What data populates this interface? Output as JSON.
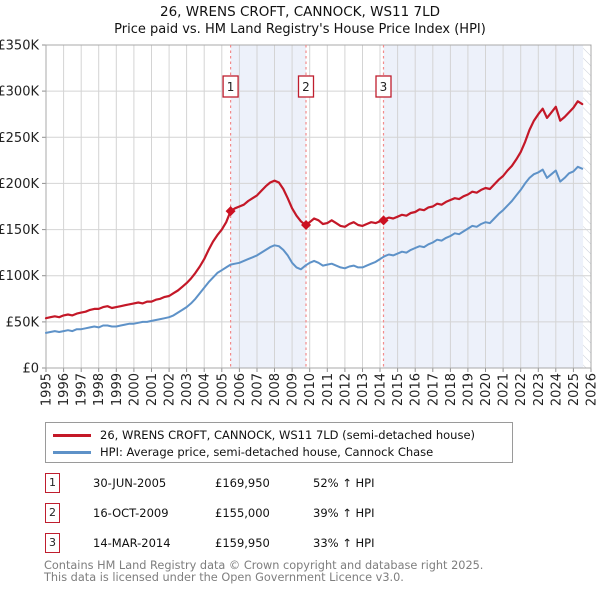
{
  "title": "26, WRENS CROFT, CANNOCK, WS11 7LD",
  "subtitle": "Price paid vs. HM Land Registry's House Price Index (HPI)",
  "chart_data": {
    "type": "line",
    "xlim": [
      1995,
      2026
    ],
    "ylim": [
      0,
      350000
    ],
    "x_start": 1995.0,
    "x_step": 0.25,
    "x_ticks": [
      1995,
      1996,
      1997,
      1998,
      1999,
      2000,
      2001,
      2002,
      2003,
      2004,
      2005,
      2006,
      2007,
      2008,
      2009,
      2010,
      2011,
      2012,
      2013,
      2014,
      2015,
      2016,
      2017,
      2018,
      2019,
      2020,
      2021,
      2022,
      2023,
      2024,
      2025,
      2026
    ],
    "y_ticks": [
      0,
      50,
      100,
      150,
      200,
      250,
      300,
      350
    ],
    "y_tick_labels": [
      "£0",
      "£50K",
      "£100K",
      "£150K",
      "£200K",
      "£250K",
      "£300K",
      "£350K"
    ],
    "grid": true,
    "legend_position": "bottom",
    "series": [
      {
        "name": "26, WRENS CROFT, CANNOCK, WS11 7LD (semi-detached house)",
        "color": "#c41828",
        "width": 2.2,
        "values_k": [
          54,
          55,
          56,
          55,
          57,
          58,
          57,
          59,
          60,
          61,
          63,
          64,
          64,
          66,
          67,
          65,
          66,
          67,
          68,
          69,
          70,
          71,
          70,
          72,
          72,
          74,
          75,
          77,
          78,
          81,
          84,
          88,
          92,
          97,
          103,
          110,
          118,
          128,
          137,
          144,
          150,
          158,
          170,
          173,
          175,
          177,
          181,
          184,
          187,
          192,
          197,
          201,
          203,
          201,
          194,
          184,
          173,
          165,
          159,
          155,
          158,
          162,
          160,
          156,
          157,
          160,
          157,
          154,
          153,
          156,
          158,
          155,
          154,
          156,
          158,
          157,
          159,
          161,
          163,
          162,
          164,
          166,
          165,
          168,
          169,
          172,
          171,
          174,
          175,
          178,
          177,
          180,
          182,
          184,
          183,
          186,
          188,
          191,
          190,
          193,
          195,
          194,
          199,
          204,
          208,
          214,
          219,
          226,
          234,
          245,
          258,
          268,
          275,
          281,
          271,
          277,
          283,
          268,
          272,
          277,
          282,
          289,
          286
        ]
      },
      {
        "name": "HPI: Average price, semi-detached house, Cannock Chase",
        "color": "#5e92c8",
        "width": 2.0,
        "values_k": [
          38,
          39,
          40,
          39,
          40,
          41,
          40,
          42,
          42,
          43,
          44,
          45,
          44,
          46,
          46,
          45,
          45,
          46,
          47,
          48,
          48,
          49,
          50,
          50,
          51,
          52,
          53,
          54,
          55,
          57,
          60,
          63,
          66,
          70,
          75,
          81,
          87,
          93,
          98,
          103,
          106,
          109,
          112,
          113,
          114,
          116,
          118,
          120,
          122,
          125,
          128,
          131,
          133,
          132,
          128,
          122,
          114,
          109,
          107,
          111,
          114,
          116,
          114,
          111,
          112,
          113,
          111,
          109,
          108,
          110,
          111,
          109,
          109,
          111,
          113,
          115,
          118,
          121,
          123,
          122,
          124,
          126,
          125,
          128,
          130,
          132,
          131,
          134,
          136,
          139,
          138,
          141,
          143,
          146,
          145,
          148,
          151,
          154,
          153,
          156,
          158,
          157,
          162,
          167,
          171,
          176,
          181,
          187,
          193,
          200,
          206,
          210,
          212,
          215,
          206,
          210,
          214,
          202,
          206,
          211,
          213,
          218,
          216
        ]
      }
    ],
    "sales": [
      {
        "n": "1",
        "x": 2005.5,
        "price": 169950
      },
      {
        "n": "2",
        "x": 2009.79,
        "price": 155000
      },
      {
        "n": "3",
        "x": 2014.2,
        "price": 159950
      }
    ],
    "shaded_bands": [
      [
        2005.5,
        2009.79
      ],
      [
        2014.2,
        2026
      ]
    ],
    "hatch_start": 2025.55,
    "colors": {
      "band": "#edf1fa",
      "grid": "#d4d4d4",
      "border": "#a9a9a9",
      "tick": "#8f8f8f",
      "dashed": "#f28b8b",
      "marker_box": "#bf1e2e",
      "marker_fill": "#cc1021",
      "axis_text": "#222222"
    }
  },
  "legend": [
    {
      "label": "26, WRENS CROFT, CANNOCK, WS11 7LD (semi-detached house)",
      "color": "#c41828"
    },
    {
      "label": "HPI: Average price, semi-detached house, Cannock Chase",
      "color": "#5e92c8"
    }
  ],
  "table": {
    "rows": [
      {
        "n": "1",
        "date": "30-JUN-2005",
        "price": "£169,950",
        "hpi": "52% ↑ HPI"
      },
      {
        "n": "2",
        "date": "16-OCT-2009",
        "price": "£155,000",
        "hpi": "39% ↑ HPI"
      },
      {
        "n": "3",
        "date": "14-MAR-2014",
        "price": "£159,950",
        "hpi": "33% ↑ HPI"
      }
    ]
  },
  "footer": {
    "line1": "Contains HM Land Registry data © Crown copyright and database right 2025.",
    "line2": "This data is licensed under the Open Government Licence v3.0."
  }
}
